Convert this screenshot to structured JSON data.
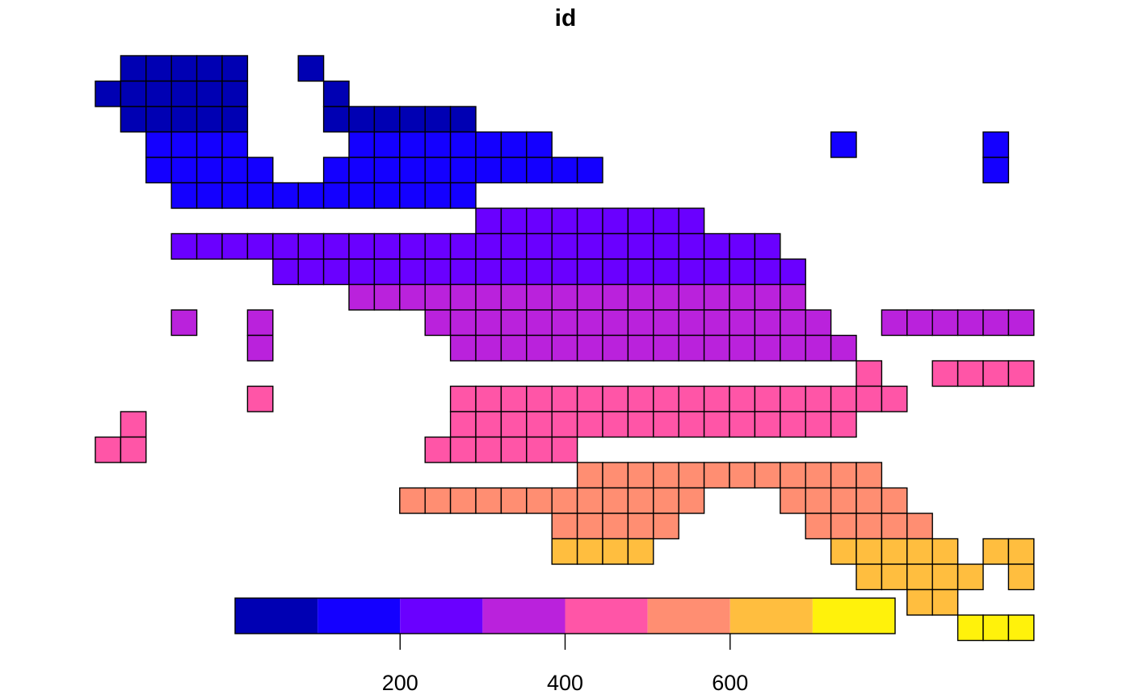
{
  "chart_data": {
    "type": "heatmap",
    "title": "id",
    "legend": {
      "position": "bottom",
      "ticks": [
        200,
        400,
        600
      ],
      "breaks": [
        0,
        100,
        200,
        300,
        400,
        500,
        600,
        700,
        800
      ],
      "colors": [
        "#0000B3",
        "#1400FF",
        "#6A00FF",
        "#BA22DC",
        "#FF55A7",
        "#FF8E72",
        "#FFBE3F",
        "#FFF20B"
      ]
    },
    "grid_origin": {
      "col_offset": 0,
      "row_offset": 0
    },
    "rows": [
      {
        "bin": 0,
        "cells": [
          [
            1,
            5
          ],
          [
            8,
            8
          ]
        ]
      },
      {
        "bin": 0,
        "cells": [
          [
            0,
            5
          ],
          [
            9,
            9
          ]
        ]
      },
      {
        "bin": 0,
        "cells": [
          [
            1,
            5
          ],
          [
            9,
            14
          ]
        ]
      },
      {
        "bin": 1,
        "cells": [
          [
            2,
            5
          ],
          [
            10,
            17
          ],
          [
            29,
            29
          ],
          [
            35,
            35
          ]
        ]
      },
      {
        "bin": 1,
        "cells": [
          [
            2,
            6
          ],
          [
            9,
            19
          ],
          [
            35,
            35
          ]
        ]
      },
      {
        "bin": 1,
        "cells": [
          [
            3,
            14
          ]
        ]
      },
      {
        "bin": 2,
        "cells": [
          [
            15,
            23
          ]
        ]
      },
      {
        "bin": 2,
        "cells": [
          [
            3,
            26
          ]
        ]
      },
      {
        "bin": 2,
        "cells": [
          [
            7,
            27
          ]
        ]
      },
      {
        "bin": 3,
        "cells": [
          [
            10,
            27
          ]
        ]
      },
      {
        "bin": 3,
        "cells": [
          [
            3,
            3
          ],
          [
            6,
            6
          ],
          [
            13,
            28
          ],
          [
            31,
            36
          ]
        ]
      },
      {
        "bin": 3,
        "cells": [
          [
            6,
            6
          ],
          [
            14,
            29
          ]
        ]
      },
      {
        "bin": 4,
        "cells": [
          [
            30,
            30
          ],
          [
            33,
            36
          ]
        ]
      },
      {
        "bin": 4,
        "cells": [
          [
            6,
            6
          ],
          [
            14,
            31
          ]
        ]
      },
      {
        "bin": 4,
        "cells": [
          [
            1,
            1
          ],
          [
            14,
            29
          ]
        ]
      },
      {
        "bin": 4,
        "cells": [
          [
            0,
            1
          ],
          [
            13,
            18
          ]
        ]
      },
      {
        "bin": 5,
        "cells": [
          [
            19,
            30
          ]
        ]
      },
      {
        "bin": 5,
        "cells": [
          [
            12,
            23
          ],
          [
            27,
            31
          ]
        ]
      },
      {
        "bin": 5,
        "cells": [
          [
            18,
            22
          ],
          [
            28,
            32
          ]
        ]
      },
      {
        "bin": 6,
        "cells": [
          [
            18,
            21
          ],
          [
            29,
            33
          ],
          [
            35,
            36
          ]
        ]
      },
      {
        "bin": 6,
        "cells": [
          [
            30,
            34
          ],
          [
            36,
            36
          ]
        ]
      },
      {
        "bin": 6,
        "cells": [
          [
            32,
            33
          ]
        ]
      },
      {
        "bin": 7,
        "cells": [
          [
            34,
            36
          ]
        ]
      }
    ]
  }
}
